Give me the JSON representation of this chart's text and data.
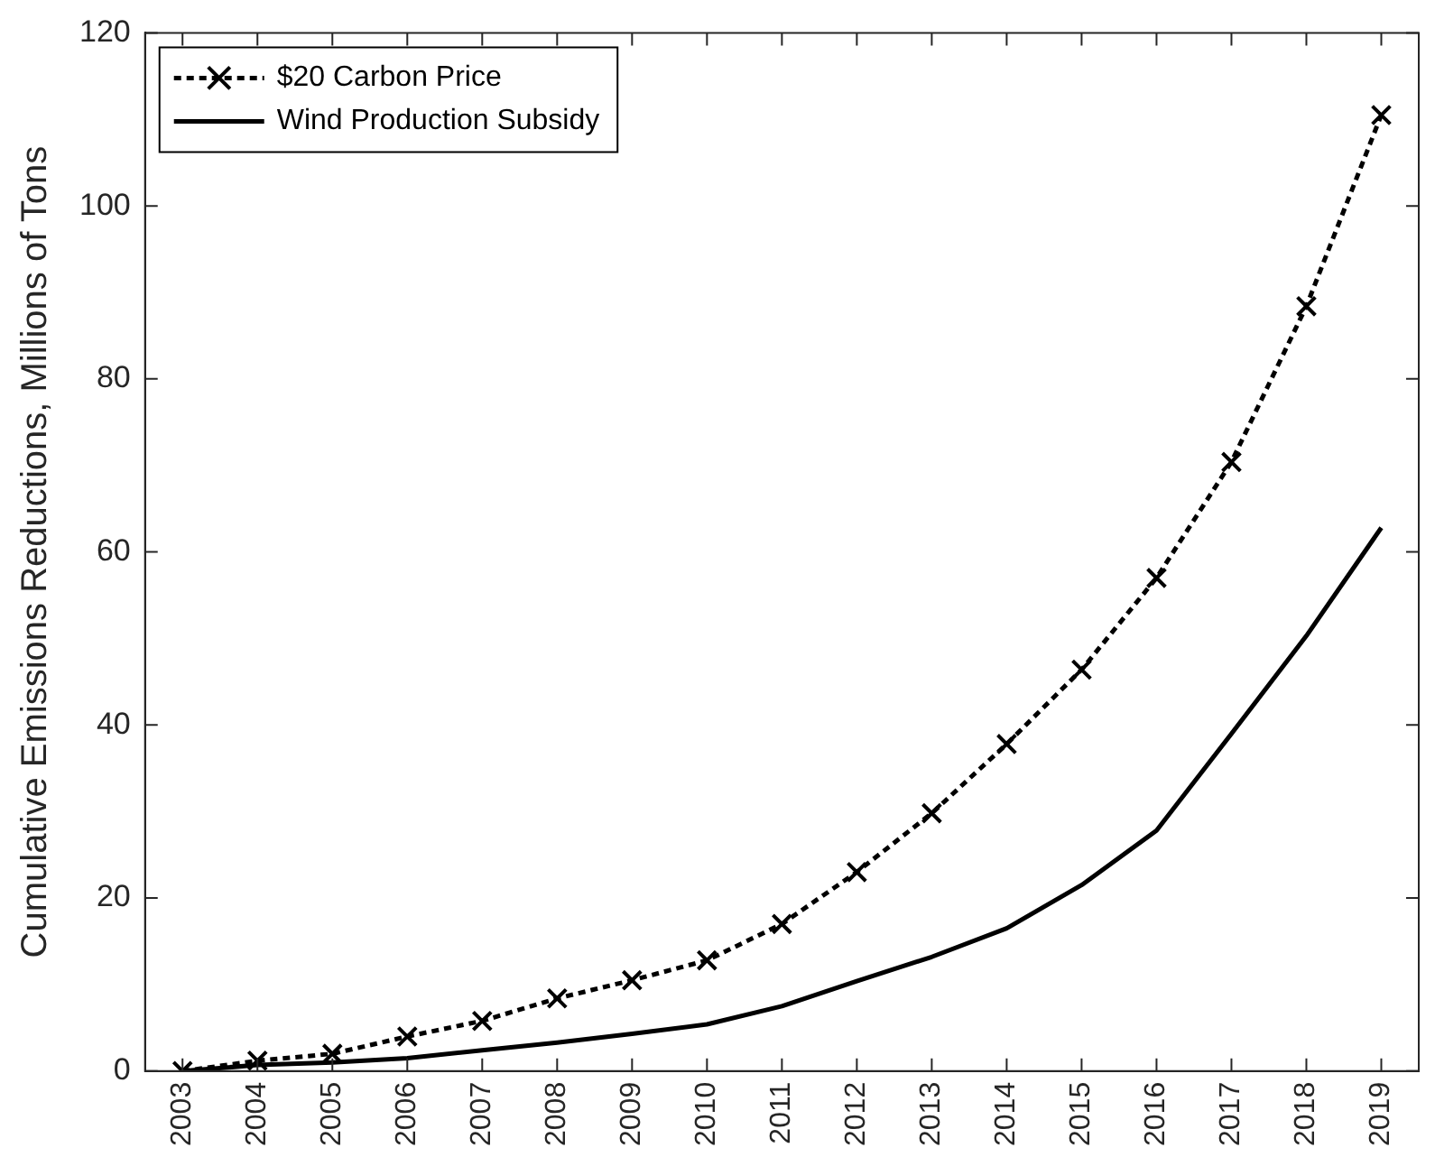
{
  "chart_data": {
    "type": "line",
    "ylabel": "Cumulative Emissions Reductions, Millions of Tons",
    "categories": [
      "2003",
      "2004",
      "2005",
      "2006",
      "2007",
      "2008",
      "2009",
      "2010",
      "2011",
      "2012",
      "2013",
      "2014",
      "2015",
      "2016",
      "2017",
      "2018",
      "2019"
    ],
    "ylim": [
      0,
      120
    ],
    "yticks": [
      0,
      20,
      40,
      60,
      80,
      100,
      120
    ],
    "grid": false,
    "legend": "top left",
    "series": [
      {
        "name": "$20 Carbon Price",
        "color": "#000000",
        "marker": "cross",
        "line_style": "dotted",
        "values": [
          0,
          1.2,
          2,
          4,
          5.8,
          8.4,
          10.5,
          12.8,
          17,
          23,
          29.8,
          37.8,
          46.4,
          57,
          70.4,
          88.4,
          110.5
        ]
      },
      {
        "name": "Wind Production Subsidy",
        "color": "#000000",
        "marker": "none",
        "line_style": "solid",
        "values": [
          0,
          0.7,
          1,
          1.5,
          2.4,
          3.3,
          4.3,
          5.4,
          7.5,
          10.4,
          13.2,
          16.5,
          21.5,
          27.8,
          39,
          50.3,
          62.8
        ]
      }
    ]
  }
}
